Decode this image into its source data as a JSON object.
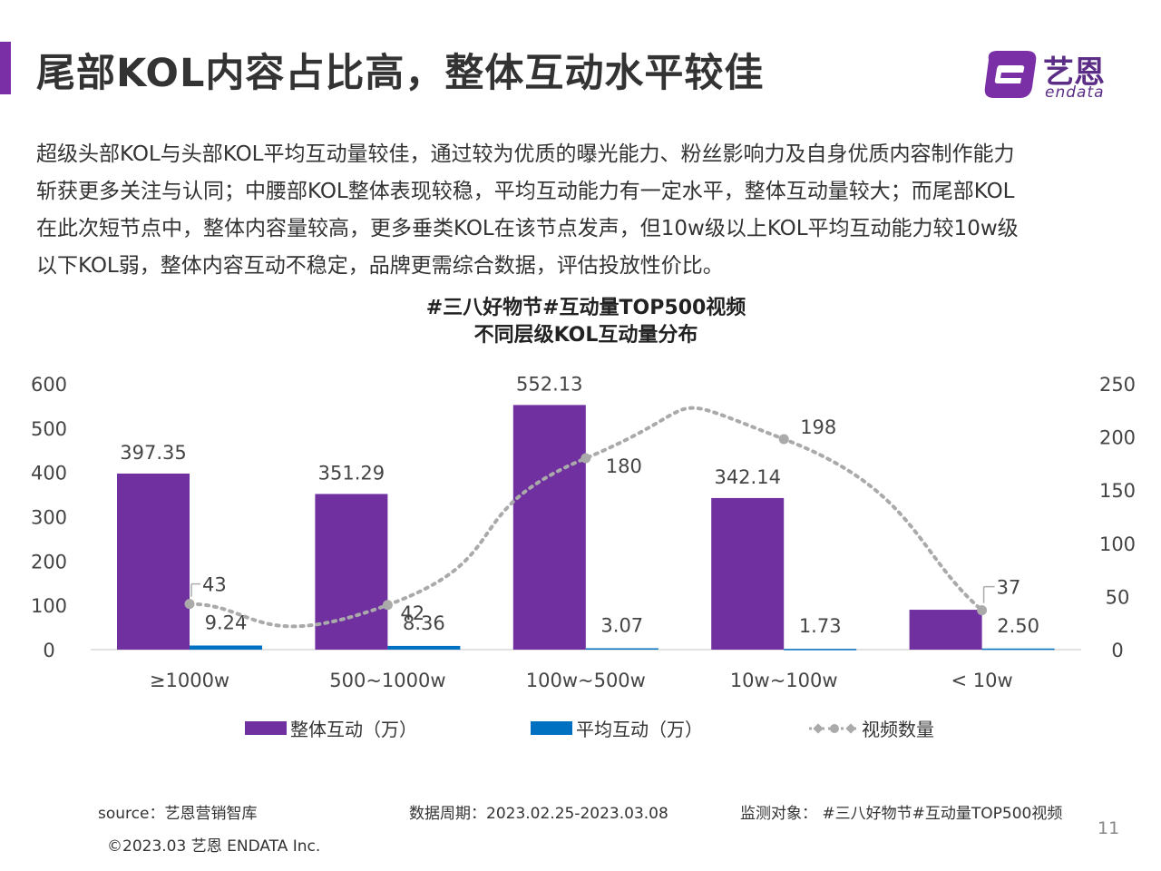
{
  "header": {
    "title": "尾部KOL内容占比高，整体互动水平较佳",
    "accent_color": "#7a2fa6"
  },
  "logo": {
    "text_cn": "艺恩",
    "text_en": "endata"
  },
  "intro": {
    "lines": [
      "超级头部KOL与头部KOL平均互动量较佳，通过较为优质的曝光能力、粉丝影响力及自身优质内容制作能力",
      "斩获更多关注与认同；中腰部KOL整体表现较稳，平均互动能力有一定水平，整体互动量较大；而尾部KOL",
      "在此次短节点中，整体内容量较高，更多垂类KOL在该节点发声，但10w级以上KOL平均互动能力较10w级",
      "以下KOL弱，整体内容互动不稳定，品牌更需综合数据，评估投放性价比。"
    ]
  },
  "chart_data": {
    "type": "bar",
    "title": "#三八好物节#互动量TOP500视频",
    "subtitle": "不同层级KOL互动量分布",
    "categories": [
      "≥1000w",
      "500~1000w",
      "100w~500w",
      "10w~100w",
      "< 10w"
    ],
    "series": [
      {
        "name": "整体互动（万）",
        "type": "bar",
        "axis": "left",
        "color": "#7030a0",
        "values": [
          397.35,
          351.29,
          552.13,
          342.14,
          90
        ],
        "labels": [
          "397.35",
          "351.29",
          "552.13",
          "342.14",
          ""
        ]
      },
      {
        "name": "平均互动（万）",
        "type": "bar",
        "axis": "left",
        "color": "#0070c0",
        "values": [
          9.24,
          8.36,
          3.07,
          1.73,
          2.5
        ],
        "labels": [
          "9.24",
          "8.36",
          "3.07",
          "1.73",
          "2.50"
        ]
      },
      {
        "name": "视频数量",
        "type": "line",
        "axis": "right",
        "color": "#aaaaaa",
        "style": "dotted-smooth",
        "values": [
          43,
          42,
          180,
          198,
          37
        ],
        "labels": [
          "43",
          "42",
          "180",
          "198",
          "37"
        ]
      }
    ],
    "y_left": {
      "min": 0,
      "max": 600,
      "ticks": [
        0,
        100,
        200,
        300,
        400,
        500,
        600
      ]
    },
    "y_right": {
      "min": 0,
      "max": 250,
      "ticks": [
        0,
        50,
        100,
        150,
        200,
        250
      ]
    },
    "grid": false,
    "legend_position": "bottom"
  },
  "footer": {
    "source": "source：艺恩营销智库",
    "period": "数据周期：2023.02.25-2023.03.08",
    "target": "监测对象：  #三八好物节#互动量TOP500视频",
    "copyright": "©2023.03 艺恩 ENDATA Inc.",
    "page": "11"
  }
}
